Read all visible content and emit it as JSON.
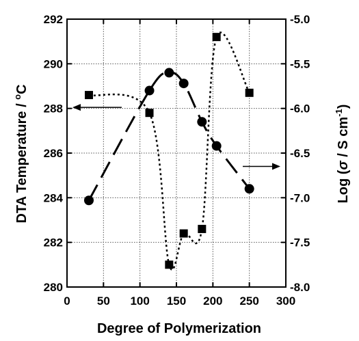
{
  "chart_data": {
    "type": "scatter",
    "xlabel": "Degree of Polymerization",
    "xlim": [
      0,
      300
    ],
    "x_ticks": [
      "0",
      "50",
      "100",
      "150",
      "200",
      "250",
      "300"
    ],
    "y_left": {
      "label_prefix": "DTA Temperature / ",
      "label_sup": "o",
      "label_suffix": "C",
      "lim": [
        280,
        292
      ],
      "ticks": [
        "280",
        "282",
        "284",
        "286",
        "288",
        "290",
        "292"
      ]
    },
    "y_right": {
      "label_prefix": "Log (",
      "label_sigma": "σ",
      "label_mid": " / S cm",
      "label_sup": "-1",
      "label_suffix": ")",
      "lim": [
        -8.0,
        -5.0
      ],
      "ticks": [
        "-8.0",
        "-7.5",
        "-7.0",
        "-6.5",
        "-6.0",
        "-5.5",
        "-5.0"
      ]
    },
    "grid": true,
    "series": [
      {
        "axis": "left",
        "marker": "square",
        "line": "dotted",
        "points": [
          {
            "x": 30,
            "y": 288.6
          },
          {
            "x": 113,
            "y": 287.8
          },
          {
            "x": 140,
            "y": 281.0
          },
          {
            "x": 160,
            "y": 282.4
          },
          {
            "x": 185,
            "y": 282.6
          },
          {
            "x": 205,
            "y": 291.2
          },
          {
            "x": 250,
            "y": 288.7
          }
        ]
      },
      {
        "axis": "right",
        "marker": "circle",
        "line": "dashed",
        "points": [
          {
            "x": 30,
            "y": -7.03
          },
          {
            "x": 113,
            "y": -5.8
          },
          {
            "x": 140,
            "y": -5.6
          },
          {
            "x": 160,
            "y": -5.72
          },
          {
            "x": 185,
            "y": -6.15
          },
          {
            "x": 205,
            "y": -6.42
          },
          {
            "x": 250,
            "y": -6.9
          }
        ]
      }
    ],
    "annotations": [
      {
        "type": "arrow",
        "direction": "left",
        "points_to": "left-axis",
        "near_series": 0
      },
      {
        "type": "arrow",
        "direction": "right",
        "points_to": "right-axis",
        "near_series": 1
      }
    ]
  }
}
